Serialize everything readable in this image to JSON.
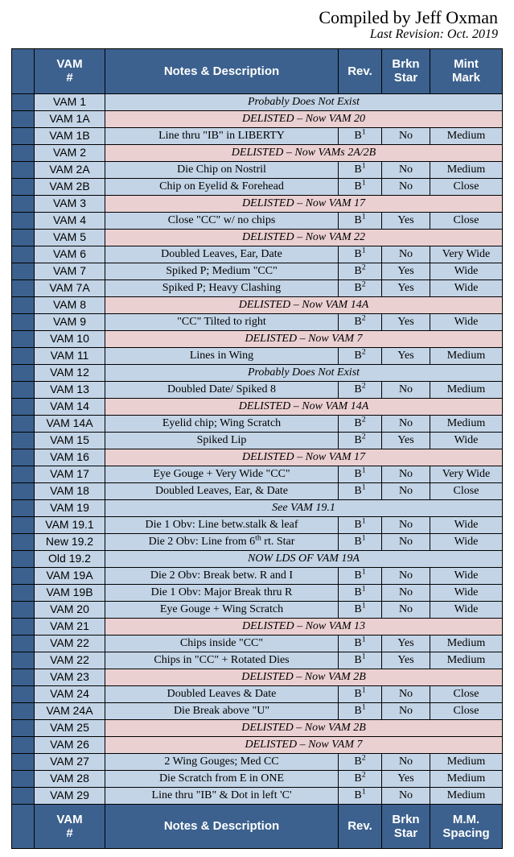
{
  "header": {
    "compiled": "Compiled by Jeff Oxman",
    "revision": "Last Revision:  Oct. 2019"
  },
  "top_headers": {
    "vam": "VAM\n#",
    "notes": "Notes & Description",
    "rev": "Rev.",
    "brkn": "Brkn\nStar",
    "mm": "Mint\nMark"
  },
  "bottom_headers": {
    "vam": "VAM\n#",
    "notes": "Notes & Description",
    "rev": "Rev.",
    "brkn": "Brkn\nStar",
    "mm": "M.M.\nSpacing"
  },
  "rows": [
    {
      "type": "span",
      "vam": "VAM 1",
      "text": "Probably Does Not Exist",
      "bg": "blue"
    },
    {
      "type": "span",
      "vam": "VAM 1A",
      "text": "DELISTED – Now VAM 20",
      "bg": "pink"
    },
    {
      "type": "data",
      "vam": "VAM 1B",
      "notes": "Line thru \"IB\" in LIBERTY",
      "rev": "B¹",
      "brkn": "No",
      "mm": "Medium"
    },
    {
      "type": "span",
      "vam": "VAM 2",
      "text": "DELISTED – Now VAMs 2A/2B",
      "bg": "pink"
    },
    {
      "type": "data",
      "vam": "VAM 2A",
      "notes": "Die Chip on Nostril",
      "rev": "B¹",
      "brkn": "No",
      "mm": "Medium"
    },
    {
      "type": "data",
      "vam": "VAM 2B",
      "notes": "Chip on Eyelid & Forehead",
      "rev": "B¹",
      "brkn": "No",
      "mm": "Close"
    },
    {
      "type": "span",
      "vam": "VAM 3",
      "text": "DELISTED – Now VAM 17",
      "bg": "pink"
    },
    {
      "type": "data",
      "vam": "VAM 4",
      "notes": "Close \"CC\" w/ no chips",
      "rev": "B¹",
      "brkn": "Yes",
      "mm": "Close"
    },
    {
      "type": "span",
      "vam": "VAM 5",
      "text": "DELISTED – Now VAM 22",
      "bg": "pink"
    },
    {
      "type": "data",
      "vam": "VAM 6",
      "notes": "Doubled Leaves, Ear, Date",
      "rev": "B¹",
      "brkn": "No",
      "mm": "Very Wide"
    },
    {
      "type": "data",
      "vam": "VAM 7",
      "notes": "Spiked P; Medium \"CC\"",
      "rev": "B²",
      "brkn": "Yes",
      "mm": "Wide"
    },
    {
      "type": "data",
      "vam": "VAM 7A",
      "notes": "Spiked P; Heavy Clashing",
      "rev": "B²",
      "brkn": "Yes",
      "mm": "Wide"
    },
    {
      "type": "span",
      "vam": "VAM 8",
      "text": "DELISTED – Now VAM 14A",
      "bg": "pink"
    },
    {
      "type": "data",
      "vam": "VAM 9",
      "notes": "\"CC\" Tilted to right",
      "rev": "B²",
      "brkn": "Yes",
      "mm": "Wide"
    },
    {
      "type": "span",
      "vam": "VAM 10",
      "text": "DELISTED – Now VAM 7",
      "bg": "pink"
    },
    {
      "type": "data",
      "vam": "VAM 11",
      "notes": "Lines in Wing",
      "rev": "B²",
      "brkn": "Yes",
      "mm": "Medium"
    },
    {
      "type": "span",
      "vam": "VAM 12",
      "text": "Probably Does Not Exist",
      "bg": "blue"
    },
    {
      "type": "data",
      "vam": "VAM 13",
      "notes": "Doubled Date/ Spiked 8",
      "rev": "B²",
      "brkn": "No",
      "mm": "Medium"
    },
    {
      "type": "span",
      "vam": "VAM 14",
      "text": "DELISTED – Now VAM 14A",
      "bg": "pink"
    },
    {
      "type": "data",
      "vam": "VAM 14A",
      "notes": "Eyelid chip; Wing Scratch",
      "rev": "B²",
      "brkn": "No",
      "mm": "Medium"
    },
    {
      "type": "data",
      "vam": "VAM 15",
      "notes": "Spiked Lip",
      "rev": "B²",
      "brkn": "Yes",
      "mm": "Wide"
    },
    {
      "type": "span",
      "vam": "VAM 16",
      "text": "DELISTED – Now VAM 17",
      "bg": "pink"
    },
    {
      "type": "data",
      "vam": "VAM 17",
      "notes": "Eye Gouge + Very Wide \"CC\"",
      "rev": "B¹",
      "brkn": "No",
      "mm": "Very Wide"
    },
    {
      "type": "data",
      "vam": "VAM 18",
      "notes": "Doubled Leaves, Ear, & Date",
      "rev": "B¹",
      "brkn": "No",
      "mm": "Close"
    },
    {
      "type": "span",
      "vam": "VAM 19",
      "text": "See VAM 19.1",
      "bg": "blue"
    },
    {
      "type": "data",
      "vam": "VAM 19.1",
      "notes": "Die 1 Obv: Line betw.stalk & leaf",
      "rev": "B¹",
      "brkn": "No",
      "mm": "Wide"
    },
    {
      "type": "data",
      "vam": "New 19.2",
      "notes": "Die 2 Obv: Line from 6ᵗʰ rt. Star",
      "rev": "B¹",
      "brkn": "No",
      "mm": "Wide"
    },
    {
      "type": "span",
      "vam": "Old 19.2",
      "text": "NOW LDS OF VAM 19A",
      "bg": "blue"
    },
    {
      "type": "data",
      "vam": "VAM 19A",
      "notes": "Die 2 Obv: Break betw. R and I",
      "rev": "B¹",
      "brkn": "No",
      "mm": "Wide"
    },
    {
      "type": "data",
      "vam": "VAM 19B",
      "notes": "Die 1 Obv: Major Break thru R",
      "rev": "B¹",
      "brkn": "No",
      "mm": "Wide"
    },
    {
      "type": "data",
      "vam": "VAM 20",
      "notes": "Eye Gouge + Wing Scratch",
      "rev": "B¹",
      "brkn": "No",
      "mm": "Wide"
    },
    {
      "type": "span",
      "vam": "VAM 21",
      "text": "DELISTED – Now VAM 13",
      "bg": "pink"
    },
    {
      "type": "data",
      "vam": "VAM 22",
      "notes": "Chips inside \"CC\"",
      "rev": "B¹",
      "brkn": "Yes",
      "mm": "Medium"
    },
    {
      "type": "data",
      "vam": "VAM 22",
      "notes": "Chips in \"CC\" + Rotated Dies",
      "rev": "B¹",
      "brkn": "Yes",
      "mm": "Medium"
    },
    {
      "type": "span",
      "vam": "VAM 23",
      "text": "DELISTED – Now VAM 2B",
      "bg": "pink"
    },
    {
      "type": "data",
      "vam": "VAM 24",
      "notes": "Doubled Leaves & Date",
      "rev": "B¹",
      "brkn": "No",
      "mm": "Close"
    },
    {
      "type": "data",
      "vam": "VAM 24A",
      "notes": "Die Break above \"U\"",
      "rev": "B¹",
      "brkn": "No",
      "mm": "Close"
    },
    {
      "type": "span",
      "vam": "VAM 25",
      "text": "DELISTED – Now VAM 2B",
      "bg": "pink"
    },
    {
      "type": "span",
      "vam": "VAM 26",
      "text": "DELISTED – Now VAM 7",
      "bg": "pink"
    },
    {
      "type": "data",
      "vam": "VAM 27",
      "notes": "2 Wing Gouges; Med CC",
      "rev": "B²",
      "brkn": "No",
      "mm": "Medium"
    },
    {
      "type": "data",
      "vam": "VAM 28",
      "notes": "Die Scratch from E in ONE",
      "rev": "B²",
      "brkn": "Yes",
      "mm": "Medium"
    },
    {
      "type": "data",
      "vam": "VAM 29",
      "notes": "Line thru \"IB\" & Dot in left 'C'",
      "rev": "B¹",
      "brkn": "No",
      "mm": "Medium"
    }
  ],
  "colors": {
    "header_bg": "#3c618e",
    "header_fg": "#ffffff",
    "blue_cell": "#c3d4e6",
    "pink_cell": "#ebd0d2",
    "border": "#000000"
  },
  "structure": {
    "type": "table",
    "columns": [
      "checkbox",
      "VAM #",
      "Notes & Description",
      "Rev.",
      "Brkn Star",
      "Mint Mark"
    ]
  }
}
